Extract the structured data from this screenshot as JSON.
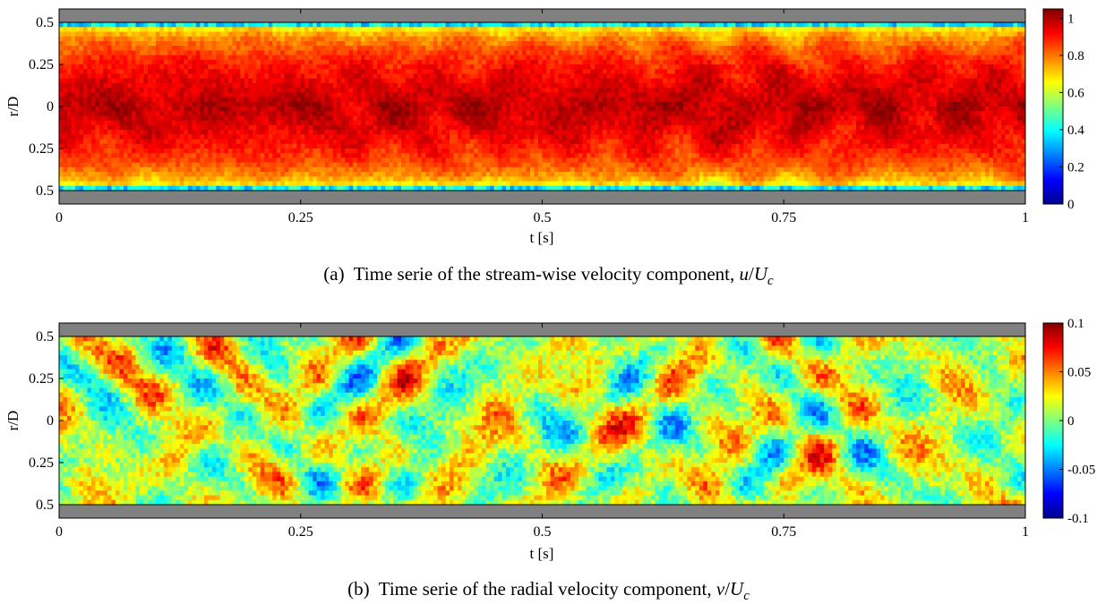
{
  "chart_data": [
    {
      "type": "heatmap",
      "id": "a",
      "caption_prefix": "(a)",
      "caption_text": "Time serie of the stream-wise velocity component, ",
      "caption_math": {
        "num": "u",
        "den": "U",
        "den_sub": "c"
      },
      "xlabel": "t [s]",
      "ylabel": "r/D",
      "xlim": [
        0,
        1
      ],
      "ylim": [
        -0.58,
        0.58
      ],
      "pipe_wall_r": 0.5,
      "xticks": [
        0,
        0.25,
        0.5,
        0.75,
        1
      ],
      "xticklabels": [
        "0",
        "0.25",
        "0.5",
        "0.75",
        "1"
      ],
      "yticks": [
        0.5,
        0.25,
        0,
        -0.25,
        -0.5
      ],
      "yticklabels": [
        "0.5",
        "0.25",
        "0",
        "0.25",
        "0.5"
      ],
      "colormap": "jet",
      "clim": [
        0,
        1.05
      ],
      "cticks": [
        1,
        0.8,
        0.6,
        0.4,
        0.2,
        0
      ],
      "cticklabels": [
        "1",
        "0.8",
        "0.6",
        "0.4",
        "0.2",
        "0"
      ],
      "wall_color": "#808080",
      "field": "streamwise: ~0.9-1.0 in core, decreasing toward walls (yellow/cyan band), ~0 at r/D=±0.5"
    },
    {
      "type": "heatmap",
      "id": "b",
      "caption_prefix": "(b)",
      "caption_text": "Time serie of the radial velocity component, ",
      "caption_math": {
        "num": "v",
        "den": "U",
        "den_sub": "c"
      },
      "xlabel": "t [s]",
      "ylabel": "r/D",
      "xlim": [
        0,
        1
      ],
      "ylim": [
        -0.58,
        0.58
      ],
      "pipe_wall_r": 0.5,
      "xticks": [
        0,
        0.25,
        0.5,
        0.75,
        1
      ],
      "xticklabels": [
        "0",
        "0.25",
        "0.5",
        "0.75",
        "1"
      ],
      "yticks": [
        0.5,
        0.25,
        0,
        -0.25,
        -0.5
      ],
      "yticklabels": [
        "0.5",
        "0.25",
        "0",
        "0.25",
        "0.5"
      ],
      "colormap": "jet",
      "clim": [
        -0.1,
        0.1
      ],
      "cticks": [
        0.1,
        0.05,
        0,
        -0.05,
        -0.1
      ],
      "cticklabels": [
        "0.1",
        "0.05",
        "0",
        "-0.05",
        "-0.1"
      ],
      "wall_color": "#808080",
      "field": "radial: fluctuations mostly within ±0.05, random blobs, some reaching ~0.08 and ~-0.06"
    }
  ]
}
